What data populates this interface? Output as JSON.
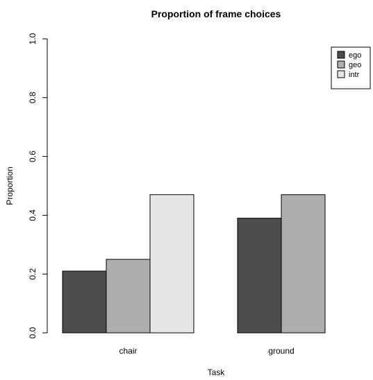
{
  "chart_data": {
    "type": "bar",
    "title": "Proportion of frame choices",
    "xlabel": "Task",
    "ylabel": "Proportion",
    "categories": [
      "chair",
      "ground"
    ],
    "series": [
      {
        "name": "ego",
        "color": "#4d4d4d",
        "values": [
          0.21,
          0.39
        ]
      },
      {
        "name": "geo",
        "color": "#aeaeae",
        "values": [
          0.25,
          0.47
        ]
      },
      {
        "name": "intr",
        "color": "#e6e6e6",
        "values": [
          0.47,
          0.0
        ]
      }
    ],
    "ylim": [
      0,
      1
    ],
    "yticks": [
      "0.0",
      "0.2",
      "0.4",
      "0.6",
      "0.8",
      "1.0"
    ],
    "grid": false,
    "legend_position": "top-right"
  }
}
